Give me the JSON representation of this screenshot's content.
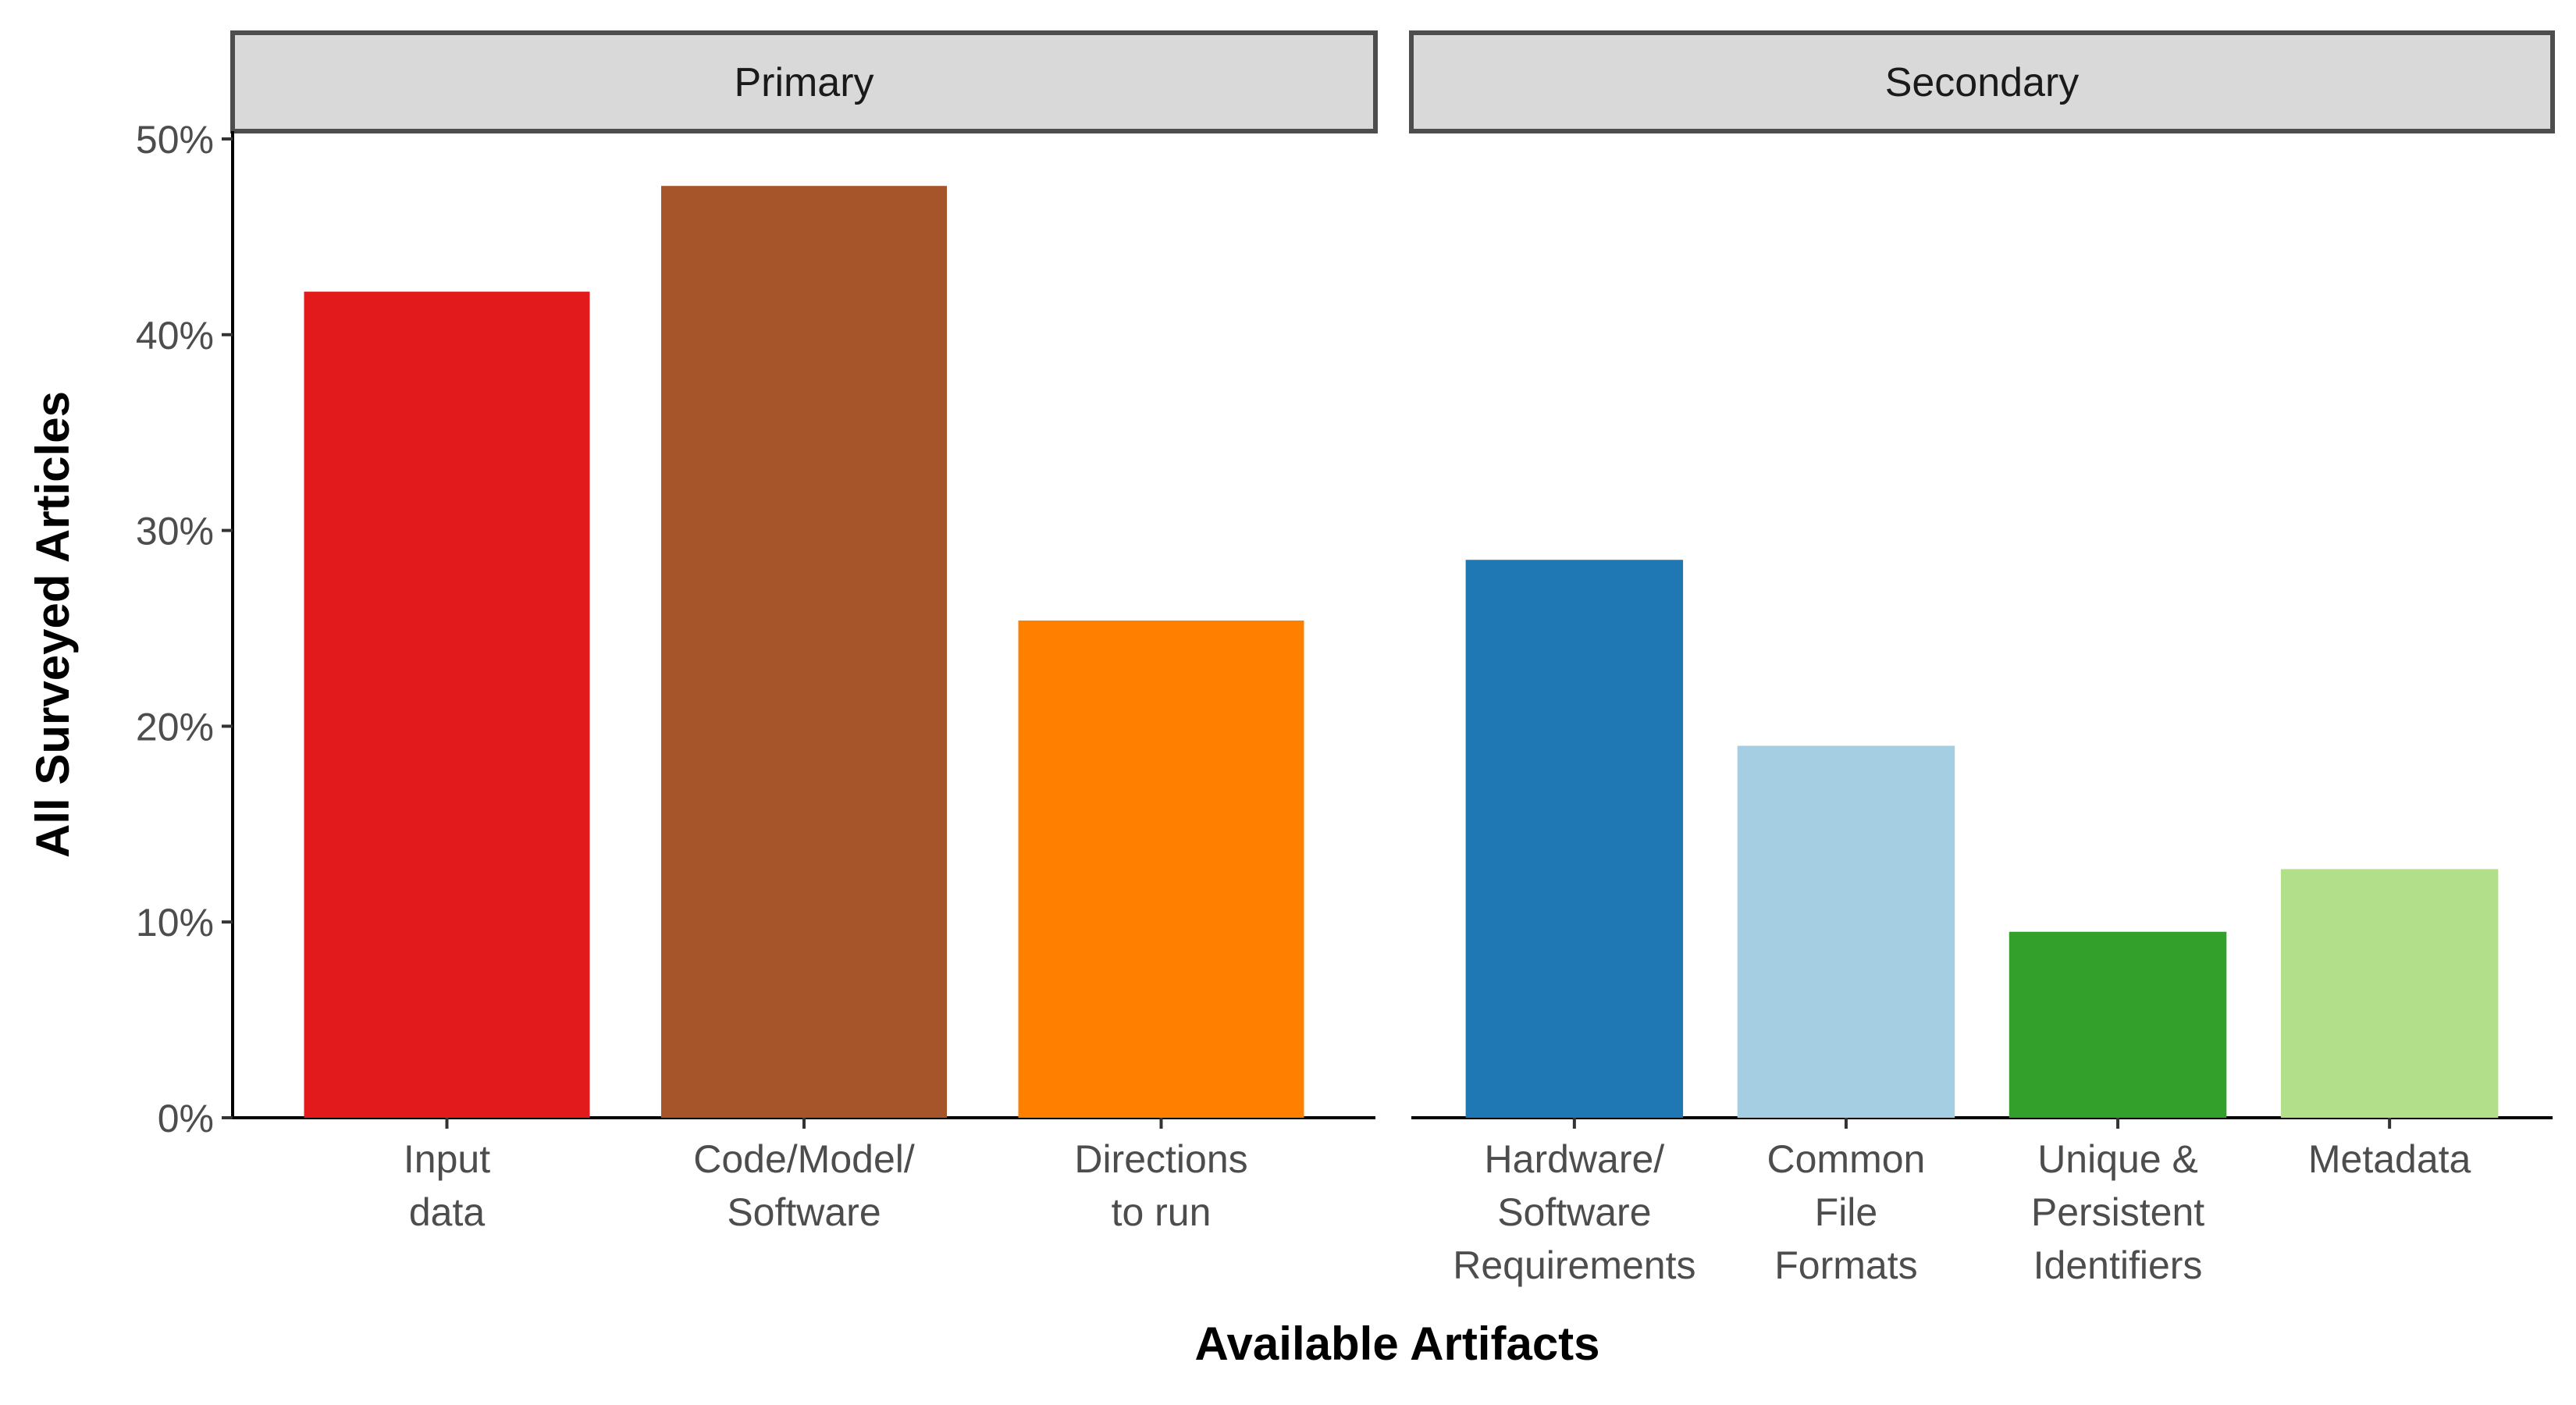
{
  "chart_data": {
    "type": "bar",
    "xlabel": "Available Artifacts",
    "ylabel": "All Surveyed Articles",
    "ylim": [
      0,
      50
    ],
    "yticks": [
      0,
      10,
      20,
      30,
      40,
      50
    ],
    "ytick_labels": [
      "0%",
      "10%",
      "20%",
      "30%",
      "40%",
      "50%"
    ],
    "grid": false,
    "legend": "none",
    "facets": [
      {
        "name": "Primary",
        "categories": [
          {
            "label": [
              "Input",
              "data"
            ],
            "value": 42.2,
            "color": "#e31a1c"
          },
          {
            "label": [
              "Code/Model/",
              "Software"
            ],
            "value": 47.6,
            "color": "#a6552a"
          },
          {
            "label": [
              "Directions",
              "to run"
            ],
            "value": 25.4,
            "color": "#ff7f00"
          }
        ]
      },
      {
        "name": "Secondary",
        "categories": [
          {
            "label": [
              "Hardware/",
              "Software",
              "Requirements"
            ],
            "value": 28.5,
            "color": "#1f78b4"
          },
          {
            "label": [
              "Common",
              "File",
              "Formats"
            ],
            "value": 19.0,
            "color": "#a6cee3"
          },
          {
            "label": [
              "Unique &",
              "Persistent",
              "Identifiers"
            ],
            "value": 9.5,
            "color": "#33a02c"
          },
          {
            "label": [
              "Metadata"
            ],
            "value": 12.7,
            "color": "#b2df8a"
          }
        ]
      }
    ]
  }
}
